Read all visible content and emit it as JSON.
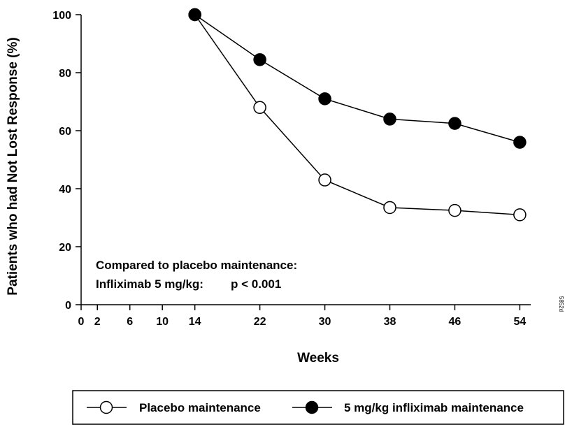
{
  "chart_data": {
    "type": "line",
    "title": "",
    "xlabel": "Weeks",
    "ylabel": "Patients who had Not Lost Response (%)",
    "x_ticks": [
      0,
      2,
      6,
      10,
      14,
      22,
      30,
      38,
      46,
      54
    ],
    "y_ticks": [
      0,
      20,
      40,
      60,
      80,
      100
    ],
    "ylim": [
      0,
      100
    ],
    "series": [
      {
        "name": "Placebo maintenance",
        "marker": "open-circle",
        "color": "#000000",
        "points": [
          {
            "x": 14,
            "y": 100
          },
          {
            "x": 22,
            "y": 68
          },
          {
            "x": 30,
            "y": 43
          },
          {
            "x": 38,
            "y": 33.5
          },
          {
            "x": 46,
            "y": 32.5
          },
          {
            "x": 54,
            "y": 31
          }
        ]
      },
      {
        "name": "5 mg/kg infliximab maintenance",
        "marker": "filled-circle",
        "color": "#000000",
        "points": [
          {
            "x": 14,
            "y": 100
          },
          {
            "x": 22,
            "y": 84.5
          },
          {
            "x": 30,
            "y": 71
          },
          {
            "x": 38,
            "y": 64
          },
          {
            "x": 46,
            "y": 62.5
          },
          {
            "x": 54,
            "y": 56
          }
        ]
      }
    ],
    "annotation": {
      "line1": "Compared to placebo maintenance:",
      "line2_label": "Infliximab 5 mg/kg:",
      "line2_value": "p < 0.001"
    },
    "side_code": "5852d",
    "legend_position": "bottom"
  }
}
